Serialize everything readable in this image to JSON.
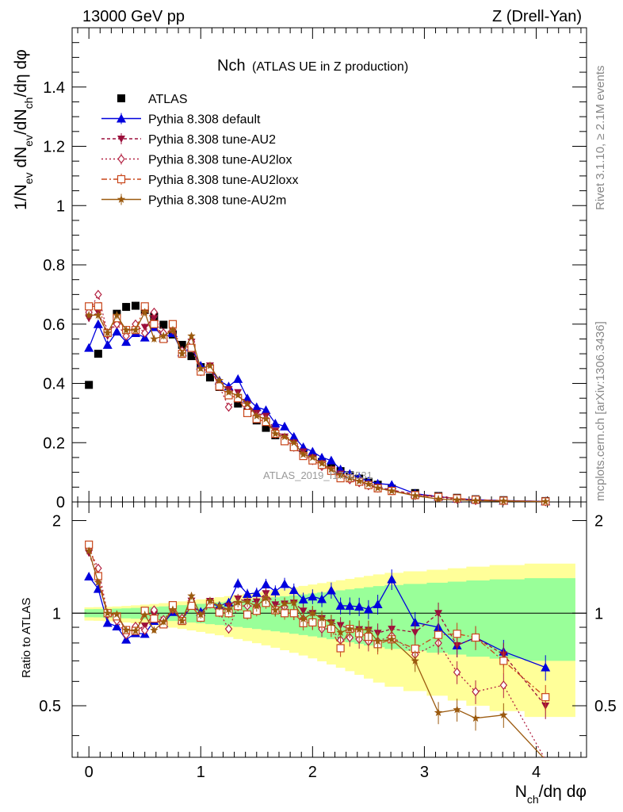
{
  "header": {
    "left": "13000 GeV pp",
    "right": "Z (Drell-Yan)"
  },
  "side_labels": {
    "rivet": "Rivet 3.1.10, ≥ 2.1M events",
    "mcplots": "mcplots.cern.ch [arXiv:1306.3436]"
  },
  "chart_data": {
    "type": "scatter",
    "title_main": "Nch",
    "title_sub": "(ATLAS UE in Z production)",
    "watermark": "ATLAS_2019_I1736531",
    "xlabel": "N_ch/dη dφ",
    "ylabel": "1/N_ev dN_ev/dN_ch/dη dφ",
    "ratio_ylabel": "Ratio to ATLAS",
    "xlim": [
      -0.15,
      4.45
    ],
    "ylim": [
      0,
      1.6
    ],
    "ratio_ylim": [
      0.34,
      2.3
    ],
    "x_ticks": [
      "0",
      "1",
      "2",
      "3",
      "4"
    ],
    "y_ticks": [
      "0",
      "0.2",
      "0.4",
      "0.6",
      "0.8",
      "1",
      "1.2",
      "1.4"
    ],
    "ratio_ticks": [
      "0.5",
      "1",
      "2"
    ],
    "x": [
      0.0,
      0.083,
      0.167,
      0.25,
      0.333,
      0.417,
      0.5,
      0.583,
      0.667,
      0.75,
      0.833,
      0.917,
      1.0,
      1.083,
      1.167,
      1.25,
      1.333,
      1.417,
      1.5,
      1.583,
      1.667,
      1.75,
      1.833,
      1.917,
      2.0,
      2.083,
      2.167,
      2.25,
      2.333,
      2.417,
      2.5,
      2.583,
      2.708,
      2.917,
      3.125,
      3.292,
      3.458,
      3.708,
      4.083
    ],
    "series": [
      {
        "name": "ATLAS",
        "values": [
          0.395,
          0.5,
          0.57,
          0.635,
          0.658,
          0.662,
          0.648,
          0.625,
          0.598,
          0.565,
          0.53,
          0.492,
          0.455,
          0.42,
          0.388,
          0.36,
          0.332,
          0.303,
          0.275,
          0.25,
          0.225,
          0.205,
          0.185,
          0.167,
          0.15,
          0.135,
          0.118,
          0.104,
          0.09,
          0.079,
          0.068,
          0.058,
          0.045,
          0.03,
          0.02,
          0.014,
          0.009,
          0.006,
          0.003
        ]
      },
      {
        "name": "Pythia 8.308 default",
        "values": [
          0.52,
          0.6,
          0.53,
          0.575,
          0.54,
          0.57,
          0.555,
          0.59,
          0.555,
          0.57,
          0.505,
          0.52,
          0.46,
          0.45,
          0.41,
          0.39,
          0.415,
          0.35,
          0.32,
          0.31,
          0.265,
          0.255,
          0.22,
          0.185,
          0.17,
          0.15,
          0.14,
          0.11,
          0.095,
          0.083,
          0.07,
          0.062,
          0.058,
          0.028,
          0.018,
          0.011,
          0.0075,
          0.0045,
          0.002
        ]
      },
      {
        "name": "Pythia 8.308 tune-AU2",
        "values": [
          0.62,
          0.64,
          0.56,
          0.62,
          0.58,
          0.58,
          0.59,
          0.62,
          0.55,
          0.59,
          0.5,
          0.54,
          0.44,
          0.46,
          0.39,
          0.38,
          0.37,
          0.33,
          0.3,
          0.29,
          0.24,
          0.22,
          0.2,
          0.17,
          0.15,
          0.13,
          0.11,
          0.095,
          0.08,
          0.07,
          0.06,
          0.05,
          0.04,
          0.026,
          0.02,
          0.011,
          0.0075,
          0.0044,
          0.0015
        ]
      },
      {
        "name": "Pythia 8.308 tune-AU2lox",
        "values": [
          0.64,
          0.7,
          0.57,
          0.6,
          0.56,
          0.6,
          0.57,
          0.64,
          0.57,
          0.58,
          0.51,
          0.54,
          0.44,
          0.45,
          0.39,
          0.32,
          0.35,
          0.32,
          0.29,
          0.28,
          0.23,
          0.215,
          0.185,
          0.16,
          0.14,
          0.12,
          0.105,
          0.085,
          0.075,
          0.065,
          0.055,
          0.047,
          0.038,
          0.022,
          0.016,
          0.009,
          0.005,
          0.0035,
          0.001
        ]
      },
      {
        "name": "Pythia 8.308 tune-AU2loxx",
        "values": [
          0.66,
          0.66,
          0.57,
          0.62,
          0.58,
          0.58,
          0.66,
          0.6,
          0.55,
          0.6,
          0.5,
          0.52,
          0.44,
          0.45,
          0.39,
          0.36,
          0.35,
          0.3,
          0.28,
          0.27,
          0.23,
          0.205,
          0.185,
          0.155,
          0.14,
          0.125,
          0.105,
          0.08,
          0.08,
          0.068,
          0.057,
          0.046,
          0.037,
          0.023,
          0.017,
          0.012,
          0.0075,
          0.0042,
          0.0016
        ]
      },
      {
        "name": "Pythia 8.308 tune-AU2m",
        "values": [
          0.63,
          0.63,
          0.57,
          0.63,
          0.58,
          0.58,
          0.64,
          0.55,
          0.56,
          0.58,
          0.5,
          0.56,
          0.45,
          0.46,
          0.41,
          0.37,
          0.36,
          0.33,
          0.29,
          0.28,
          0.23,
          0.22,
          0.2,
          0.16,
          0.15,
          0.13,
          0.11,
          0.09,
          0.08,
          0.07,
          0.06,
          0.047,
          0.037,
          0.021,
          0.0095,
          0.0068,
          0.0041,
          0.0028,
          0.001
        ]
      }
    ]
  }
}
